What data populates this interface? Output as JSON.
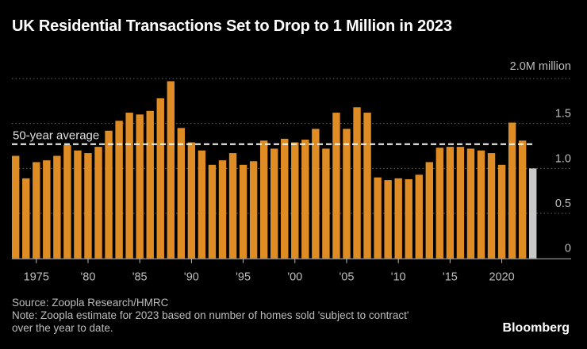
{
  "title": "UK Residential Transactions Set to Drop to 1 Million in 2023",
  "source": "Source: Zoopla Research/HMRC",
  "note_line1": "Note: Zoopla estimate for 2023 based on number of homes sold 'subject to contract'",
  "note_line2": "over the year to date.",
  "logo": "Bloomberg",
  "colors": {
    "bar": "#e08c24",
    "estimate_bar": "#c8c8c8",
    "background": "#000000"
  },
  "chart_data": {
    "type": "bar",
    "title": "UK Residential Transactions Set to Drop to 1 Million in 2023",
    "ylabel": "",
    "y_unit_label": "2.0M million",
    "ylim": [
      0,
      2.0
    ],
    "y_ticks": [
      0,
      0.5,
      1.0,
      1.5,
      2.0
    ],
    "y_tick_labels": [
      "0",
      "0.5",
      "1.0",
      "1.5",
      "2.0M million"
    ],
    "x_tick_years": [
      1975,
      1980,
      1985,
      1990,
      1995,
      2000,
      2005,
      2010,
      2015,
      2020
    ],
    "x_tick_labels": [
      "1975",
      "'80",
      "'85",
      "'90",
      "'95",
      "'00",
      "'05",
      "'10",
      "'15",
      "2020"
    ],
    "grid": true,
    "years": [
      1973,
      1974,
      1975,
      1976,
      1977,
      1978,
      1979,
      1980,
      1981,
      1982,
      1983,
      1984,
      1985,
      1986,
      1987,
      1988,
      1989,
      1990,
      1991,
      1992,
      1993,
      1994,
      1995,
      1996,
      1997,
      1998,
      1999,
      2000,
      2001,
      2002,
      2003,
      2004,
      2005,
      2006,
      2007,
      2008,
      2009,
      2010,
      2011,
      2012,
      2013,
      2014,
      2015,
      2016,
      2017,
      2018,
      2019,
      2020,
      2021,
      2022,
      2023
    ],
    "values": [
      1.14,
      0.89,
      1.07,
      1.09,
      1.14,
      1.26,
      1.2,
      1.17,
      1.24,
      1.42,
      1.53,
      1.62,
      1.6,
      1.64,
      1.78,
      1.97,
      1.45,
      1.29,
      1.2,
      1.04,
      1.09,
      1.17,
      1.04,
      1.08,
      1.31,
      1.22,
      1.33,
      1.29,
      1.32,
      1.44,
      1.22,
      1.62,
      1.44,
      1.68,
      1.62,
      0.9,
      0.87,
      0.89,
      0.88,
      0.93,
      1.07,
      1.23,
      1.24,
      1.24,
      1.22,
      1.2,
      1.17,
      1.04,
      1.51,
      1.31,
      1.0
    ],
    "estimate_years": [
      2023
    ],
    "average": {
      "label": "50-year average",
      "value": 1.27
    }
  }
}
